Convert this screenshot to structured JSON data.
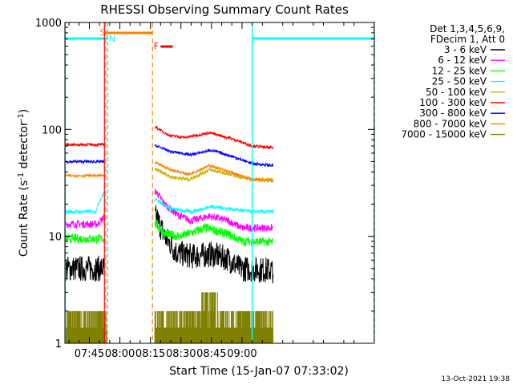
{
  "chart_data": {
    "type": "line",
    "title": "RHESSI Observing Summary Count Rates",
    "xlabel": "Start Time (15-Jan-07 07:33:02)",
    "ylabel_main": "Count Rate (s",
    "ylabel_sup1": "-1",
    "ylabel_mid": " detector",
    "ylabel_sup2": "-1",
    "ylabel_end": ")",
    "y_scale": "log",
    "ylim": [
      1,
      1000
    ],
    "xlim_minutes": [
      453,
      605
    ],
    "x_ticks": [
      {
        "m": 465,
        "label": "07:45"
      },
      {
        "m": 480,
        "label": "08:00"
      },
      {
        "m": 495,
        "label": "08:15"
      },
      {
        "m": 510,
        "label": "08:30"
      },
      {
        "m": 525,
        "label": "08:45"
      },
      {
        "m": 540,
        "label": "09:00"
      }
    ],
    "y_ticks": [
      {
        "v": 1,
        "label": "1"
      },
      {
        "v": 10,
        "label": "10"
      },
      {
        "v": 100,
        "label": "100"
      },
      {
        "v": 1000,
        "label": "1000"
      }
    ],
    "legend_header": [
      "Det 1,3,4,5,6,9,",
      "FDecim 1, Att 0"
    ],
    "series": [
      {
        "name": "3 - 6 keV",
        "color": "#000000",
        "pre": 5,
        "post": [
          [
            498,
            15
          ],
          [
            502,
            10
          ],
          [
            508,
            7
          ],
          [
            516,
            6.5
          ],
          [
            525,
            6.8
          ],
          [
            533,
            6.2
          ],
          [
            539,
            5
          ],
          [
            555,
            4.8
          ]
        ],
        "noise": 0.28
      },
      {
        "name": "6 - 12 keV",
        "color": "#ff00ff",
        "pre": 13,
        "post": [
          [
            498,
            26
          ],
          [
            502,
            20
          ],
          [
            508,
            16
          ],
          [
            515,
            14
          ],
          [
            524,
            15.5
          ],
          [
            533,
            14
          ],
          [
            540,
            12
          ],
          [
            555,
            12
          ]
        ],
        "noise": 0.08
      },
      {
        "name": "12 - 25 keV",
        "color": "#00ff00",
        "pre": 9.5,
        "post": [
          [
            498,
            13
          ],
          [
            502,
            10.5
          ],
          [
            510,
            10
          ],
          [
            522,
            12
          ],
          [
            533,
            10.5
          ],
          [
            540,
            9
          ],
          [
            555,
            8.8
          ]
        ],
        "noise": 0.1
      },
      {
        "name": "25 - 50 keV",
        "color": "#00ffff",
        "pre": 17,
        "post": [
          [
            498,
            22
          ],
          [
            505,
            18
          ],
          [
            515,
            17
          ],
          [
            525,
            19
          ],
          [
            535,
            18
          ],
          [
            545,
            17
          ],
          [
            555,
            17
          ]
        ],
        "noise": 0.04
      },
      {
        "name": "50 - 100 keV",
        "color": "#c8b400",
        "pre": null,
        "post": [
          [
            498,
            42
          ],
          [
            505,
            36
          ],
          [
            514,
            34
          ],
          [
            524,
            42
          ],
          [
            534,
            38
          ],
          [
            545,
            34
          ],
          [
            555,
            34
          ]
        ],
        "noise": 0.04
      },
      {
        "name": "100 - 300 keV",
        "color": "#ff0000",
        "pre": 72,
        "post": [
          [
            498,
            104
          ],
          [
            504,
            88
          ],
          [
            512,
            84
          ],
          [
            524,
            93
          ],
          [
            534,
            83
          ],
          [
            545,
            70
          ],
          [
            555,
            67
          ]
        ],
        "noise": 0.03
      },
      {
        "name": "300 - 800 keV",
        "color": "#0000ff",
        "pre": 50,
        "post": [
          [
            498,
            70
          ],
          [
            505,
            62
          ],
          [
            515,
            58
          ],
          [
            525,
            64
          ],
          [
            535,
            56
          ],
          [
            545,
            48
          ],
          [
            555,
            46
          ]
        ],
        "noise": 0.03
      },
      {
        "name": "800 - 7000 keV",
        "color": "#ff8000",
        "pre": 37,
        "post": [
          [
            498,
            48
          ],
          [
            505,
            42
          ],
          [
            514,
            38
          ],
          [
            524,
            46
          ],
          [
            534,
            40
          ],
          [
            545,
            34
          ],
          [
            555,
            33
          ]
        ],
        "noise": 0.03
      },
      {
        "name": "7000 - 15000 keV",
        "color": "#808000",
        "pre": null,
        "post": null,
        "noise": 0
      }
    ],
    "pre_range_min": [
      453,
      472.4
    ],
    "post_range_min": [
      497.2,
      555.3
    ],
    "mark_saa": {
      "label": "S",
      "start": 473,
      "end": 496,
      "color": "#ff8000"
    },
    "mark_night": {
      "label": "N",
      "color": "#00ffff"
    },
    "mark_flare": {
      "label": "F",
      "start": 500,
      "end": 506,
      "color": "#ff0000"
    }
  },
  "timestamp": "13-Oct-2021 19:38"
}
